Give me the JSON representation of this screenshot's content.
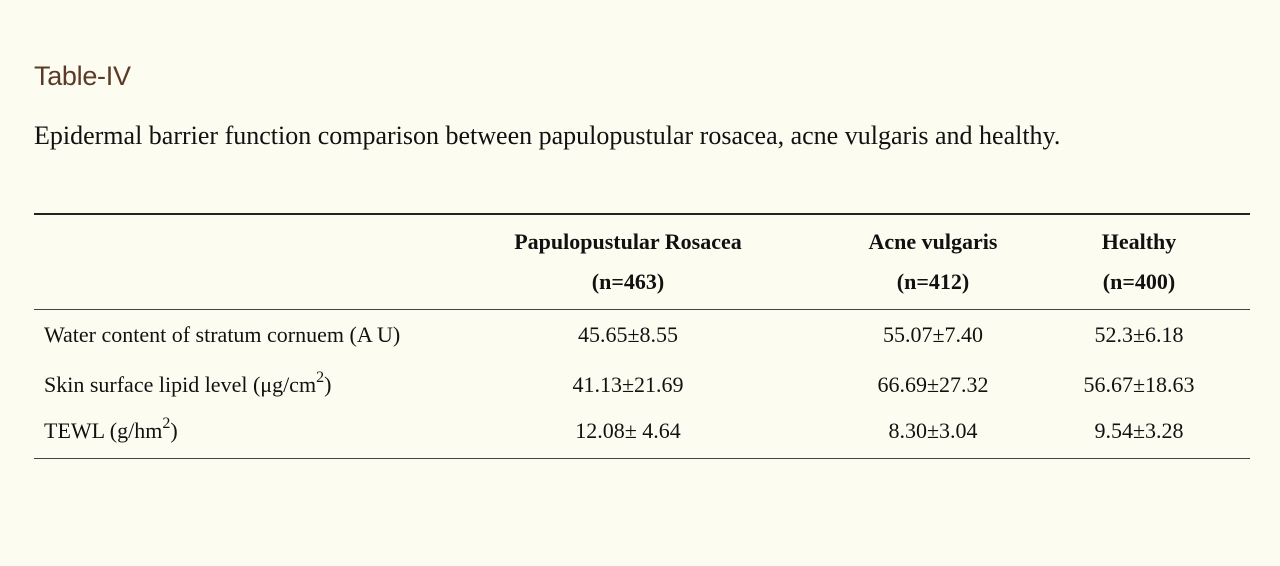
{
  "title": "Table-IV",
  "caption": "Epidermal barrier function comparison between papulopustular rosacea, acne vulgaris and healthy.",
  "table": {
    "headers": [
      {
        "name": "",
        "n": ""
      },
      {
        "name": "Papulopustular Rosacea",
        "n": "(n=463)"
      },
      {
        "name": "Acne vulgaris",
        "n": "(n=412)"
      },
      {
        "name": "Healthy",
        "n": "(n=400)"
      }
    ],
    "rows": [
      {
        "label": "Water content of stratum cornuem (A U)",
        "label_sup": "",
        "label_suffix": "",
        "values": [
          "45.65±8.55",
          "55.07±7.40",
          "52.3±6.18"
        ]
      },
      {
        "label": "Skin surface lipid level (μg/cm",
        "label_sup": "2",
        "label_suffix": ")",
        "values": [
          "41.13±21.69",
          "66.69±27.32",
          "56.67±18.63"
        ]
      },
      {
        "label": "TEWL (g/hm",
        "label_sup": "2",
        "label_suffix": ")",
        "values": [
          "12.08± 4.64",
          "8.30±3.04",
          "9.54±3.28"
        ]
      }
    ]
  }
}
